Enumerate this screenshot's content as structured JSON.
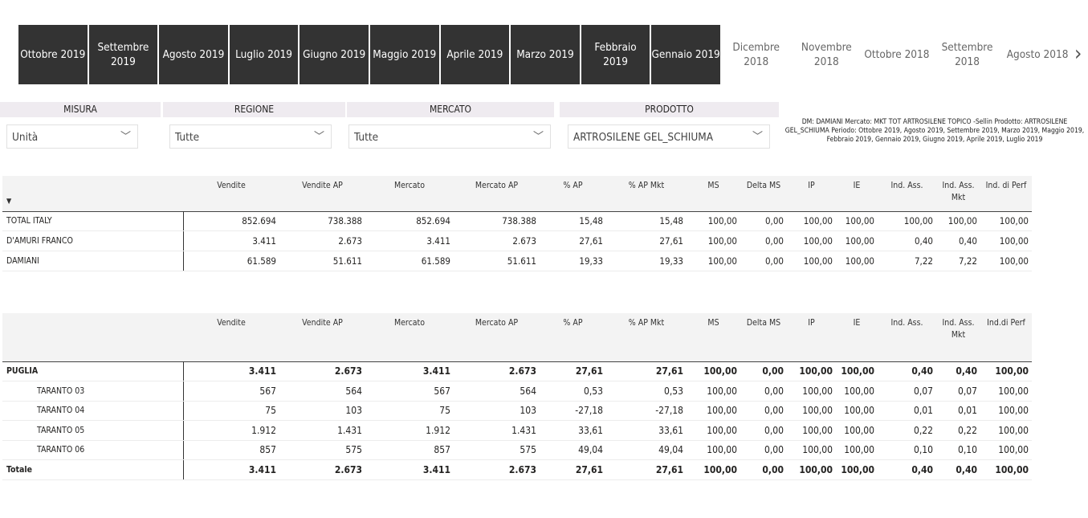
{
  "periods": [
    {
      "label": "Ottobre 2019",
      "selected": true
    },
    {
      "label": "Settembre 2019",
      "selected": true
    },
    {
      "label": "Agosto 2019",
      "selected": true
    },
    {
      "label": "Luglio 2019",
      "selected": true
    },
    {
      "label": "Giugno 2019",
      "selected": true
    },
    {
      "label": "Maggio 2019",
      "selected": true
    },
    {
      "label": "Aprile 2019",
      "selected": true
    },
    {
      "label": "Marzo 2019",
      "selected": true
    },
    {
      "label": "Febbraio 2019",
      "selected": true
    },
    {
      "label": "Gennaio 2019",
      "selected": true
    },
    {
      "label": "Dicembre 2018",
      "selected": false
    },
    {
      "label": "Novembre 2018",
      "selected": false
    },
    {
      "label": "Ottobre 2018",
      "selected": false
    },
    {
      "label": "Settembre 2018",
      "selected": false
    },
    {
      "label": "Agosto 2018",
      "selected": false
    }
  ],
  "next_icon": "›",
  "filters": [
    {
      "label": "MISURA",
      "value": "Unità"
    },
    {
      "label": "REGIONE",
      "value": "Tutte"
    },
    {
      "label": "MERCATO",
      "value": "Tutte"
    },
    {
      "label": "PRODOTTO",
      "value": "ARTROSILENE GEL_SCHIUMA"
    }
  ],
  "chevron": "﹀",
  "description": "DM:  DAMIANI Mercato:  MKT TOT ARTROSILENE TOPICO -Sellin Prodotto: ARTROSILENE GEL_SCHIUMA Periodo: Ottobre 2019, Agosto 2019, Settembre 2019, Marzo 2019, Maggio 2019, Febbraio 2019, Gennaio 2019, Giugno 2019, Aprile 2019, Luglio 2019",
  "table1": {
    "sort_icon": "▼",
    "columns": [
      "Vendite",
      "Vendite AP",
      "Mercato",
      "Mercato AP",
      "% AP",
      "% AP Mkt",
      "MS",
      "Delta MS",
      "IP",
      "IE",
      "Ind. Ass.",
      "Ind. Ass. Mkt",
      "Ind. di Perf"
    ],
    "rows": [
      {
        "label": "TOTAL ITALY",
        "values": [
          "852.694",
          "738.388",
          "852.694",
          "738.388",
          "15,48",
          "15,48",
          "100,00",
          "0,00",
          "100,00",
          "100,00",
          "100,00",
          "100,00",
          "100,00"
        ]
      },
      {
        "label": "D'AMURI FRANCO",
        "values": [
          "3.411",
          "2.673",
          "3.411",
          "2.673",
          "27,61",
          "27,61",
          "100,00",
          "0,00",
          "100,00",
          "100,00",
          "0,40",
          "0,40",
          "100,00"
        ]
      },
      {
        "label": "DAMIANI",
        "values": [
          "61.589",
          "51.611",
          "61.589",
          "51.611",
          "19,33",
          "19,33",
          "100,00",
          "0,00",
          "100,00",
          "100,00",
          "7,22",
          "7,22",
          "100,00"
        ]
      }
    ]
  },
  "table2": {
    "columns": [
      "Vendite",
      "Vendite AP",
      "Mercato",
      "Mercato AP",
      "% AP",
      "% AP Mkt",
      "MS",
      "Delta MS",
      "IP",
      "IE",
      "Ind. Ass.",
      "Ind. Ass. Mkt",
      "Ind.di Perf"
    ],
    "rows": [
      {
        "label": "PUGLIA",
        "bold": true,
        "values": [
          "3.411",
          "2.673",
          "3.411",
          "2.673",
          "27,61",
          "27,61",
          "100,00",
          "0,00",
          "100,00",
          "100,00",
          "0,40",
          "0,40",
          "100,00"
        ]
      },
      {
        "label": "TARANTO 03",
        "indent": true,
        "values": [
          "567",
          "564",
          "567",
          "564",
          "0,53",
          "0,53",
          "100,00",
          "0,00",
          "100,00",
          "100,00",
          "0,07",
          "0,07",
          "100,00"
        ]
      },
      {
        "label": "TARANTO 04",
        "indent": true,
        "values": [
          "75",
          "103",
          "75",
          "103",
          "-27,18",
          "-27,18",
          "100,00",
          "0,00",
          "100,00",
          "100,00",
          "0,01",
          "0,01",
          "100,00"
        ]
      },
      {
        "label": "TARANTO 05",
        "indent": true,
        "values": [
          "1.912",
          "1.431",
          "1.912",
          "1.431",
          "33,61",
          "33,61",
          "100,00",
          "0,00",
          "100,00",
          "100,00",
          "0,22",
          "0,22",
          "100,00"
        ]
      },
      {
        "label": "TARANTO 06",
        "indent": true,
        "values": [
          "857",
          "575",
          "857",
          "575",
          "49,04",
          "49,04",
          "100,00",
          "0,00",
          "100,00",
          "100,00",
          "0,10",
          "0,10",
          "100,00"
        ]
      },
      {
        "label": "Totale",
        "bold": true,
        "values": [
          "3.411",
          "2.673",
          "3.411",
          "2.673",
          "27,61",
          "27,61",
          "100,00",
          "0,00",
          "100,00",
          "100,00",
          "0,40",
          "0,40",
          "100,00"
        ]
      }
    ]
  }
}
